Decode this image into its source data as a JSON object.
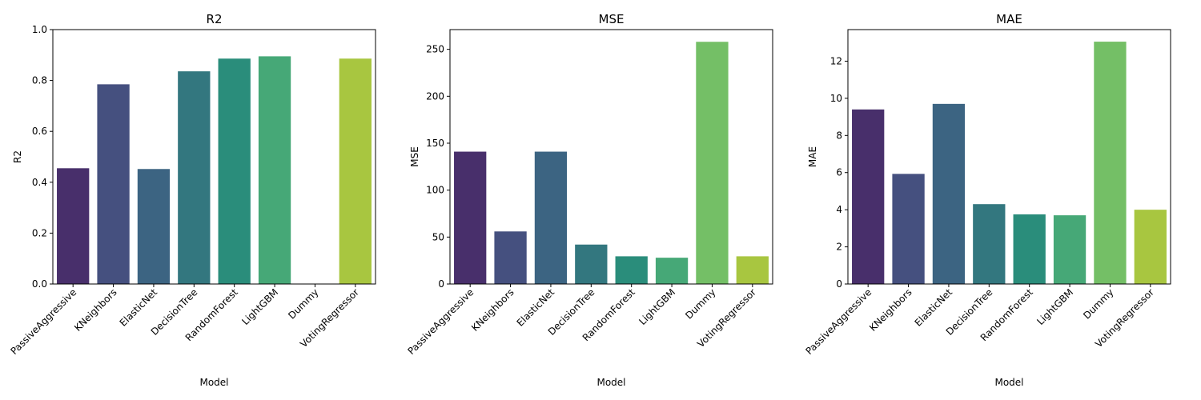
{
  "chart_data": [
    {
      "type": "bar",
      "title": "R2",
      "xlabel": "Model",
      "ylabel": "R2",
      "ylim": [
        0,
        1.0
      ],
      "yticks": [
        0.0,
        0.2,
        0.4,
        0.6,
        0.8,
        1.0
      ],
      "ytick_labels": [
        "0.0",
        "0.2",
        "0.4",
        "0.6",
        "0.8",
        "1.0"
      ],
      "categories": [
        "PassiveAggressive",
        "KNeighbors",
        "ElasticNet",
        "DecisionTree",
        "RandomForest",
        "LightGBM",
        "Dummy",
        "VotingRegressor"
      ],
      "values": [
        0.455,
        0.785,
        0.452,
        0.836,
        0.886,
        0.895,
        0.0,
        0.886
      ]
    },
    {
      "type": "bar",
      "title": "MSE",
      "xlabel": "Model",
      "ylabel": "MSE",
      "ylim": [
        0,
        271
      ],
      "yticks": [
        0,
        50,
        100,
        150,
        200,
        250
      ],
      "ytick_labels": [
        "0",
        "50",
        "100",
        "150",
        "200",
        "250"
      ],
      "categories": [
        "PassiveAggressive",
        "KNeighbors",
        "ElasticNet",
        "DecisionTree",
        "RandomForest",
        "LightGBM",
        "Dummy",
        "VotingRegressor"
      ],
      "values": [
        141,
        56,
        141,
        42,
        29.5,
        28,
        258,
        29.5
      ]
    },
    {
      "type": "bar",
      "title": "MAE",
      "xlabel": "Model",
      "ylabel": "MAE",
      "ylim": [
        0,
        13.7
      ],
      "yticks": [
        0,
        2,
        4,
        6,
        8,
        10,
        12
      ],
      "ytick_labels": [
        "0",
        "2",
        "4",
        "6",
        "8",
        "10",
        "12"
      ],
      "categories": [
        "PassiveAggressive",
        "KNeighbors",
        "ElasticNet",
        "DecisionTree",
        "RandomForest",
        "LightGBM",
        "Dummy",
        "VotingRegressor"
      ],
      "values": [
        9.4,
        5.93,
        9.7,
        4.3,
        3.75,
        3.7,
        13.05,
        4.0
      ]
    }
  ],
  "colors": [
    "#482f6b",
    "#45507f",
    "#3c6482",
    "#33777f",
    "#2a8d7b",
    "#46a877",
    "#74bf66",
    "#a8c640"
  ]
}
